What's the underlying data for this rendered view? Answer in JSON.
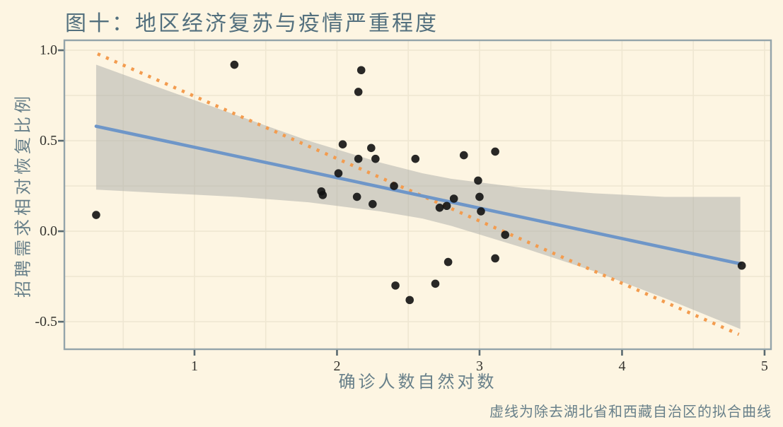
{
  "chart_data": {
    "type": "scatter",
    "title": "图十：地区经济复苏与疫情严重程度",
    "xlabel": "确诊人数自然对数",
    "ylabel": "招聘需求相对恢复比例",
    "annotation": "虚线为除去湖北省和西藏自治区的拟合曲线",
    "xlim": [
      0.087,
      5.045
    ],
    "ylim": [
      -0.652,
      1.055
    ],
    "x_ticks": [
      1,
      2,
      3,
      4,
      5
    ],
    "x_tick_labels": [
      "1",
      "2",
      "3",
      "4",
      "5"
    ],
    "y_ticks": [
      1.0,
      0.5,
      0.0,
      -0.5
    ],
    "y_tick_labels": [
      "1.0",
      "0.5",
      "0.0",
      "-0.5"
    ],
    "x_gridlines": [
      0.5,
      1.0,
      1.5,
      2.0,
      2.5,
      3.0,
      3.5,
      4.0,
      4.5,
      5.0
    ],
    "y_gridlines": [
      -0.5,
      -0.25,
      0.0,
      0.25,
      0.5,
      0.75,
      1.0
    ],
    "grid": "on",
    "legend": "none",
    "points": [
      [
        0.31,
        0.09
      ],
      [
        1.28,
        0.92
      ],
      [
        2.17,
        0.89
      ],
      [
        2.15,
        0.77
      ],
      [
        2.04,
        0.48
      ],
      [
        2.24,
        0.46
      ],
      [
        2.15,
        0.4
      ],
      [
        2.27,
        0.4
      ],
      [
        2.55,
        0.4
      ],
      [
        2.89,
        0.42
      ],
      [
        3.11,
        0.44
      ],
      [
        2.01,
        0.32
      ],
      [
        2.99,
        0.28
      ],
      [
        1.89,
        0.22
      ],
      [
        1.9,
        0.2
      ],
      [
        2.4,
        0.25
      ],
      [
        2.14,
        0.19
      ],
      [
        2.25,
        0.15
      ],
      [
        2.82,
        0.18
      ],
      [
        2.72,
        0.13
      ],
      [
        2.77,
        0.14
      ],
      [
        3.0,
        0.19
      ],
      [
        3.01,
        0.11
      ],
      [
        3.18,
        -0.02
      ],
      [
        2.78,
        -0.17
      ],
      [
        3.11,
        -0.15
      ],
      [
        2.41,
        -0.3
      ],
      [
        2.69,
        -0.29
      ],
      [
        2.51,
        -0.38
      ],
      [
        4.84,
        -0.19
      ]
    ],
    "solid_fit_line": {
      "x1": 0.31,
      "y1": 0.58,
      "x2": 4.83,
      "y2": -0.18
    },
    "dashed_fit_line": {
      "x1": 0.32,
      "y1": 0.98,
      "x2": 4.82,
      "y2": -0.57
    },
    "confidence_band": {
      "x": [
        0.31,
        0.8,
        1.3,
        1.8,
        2.3,
        2.6,
        2.8,
        3.3,
        3.8,
        4.3,
        4.83
      ],
      "upper": [
        0.92,
        0.78,
        0.64,
        0.5,
        0.38,
        0.32,
        0.29,
        0.24,
        0.21,
        0.19,
        0.19
      ],
      "lower": [
        0.23,
        0.21,
        0.19,
        0.16,
        0.11,
        0.07,
        0.03,
        -0.09,
        -0.22,
        -0.37,
        -0.54
      ]
    },
    "colors": {
      "background": "#FDF5E2",
      "panel_border": "#94A4AA",
      "gridline": "#EFE7D2",
      "tick": "#5A6A70",
      "tick_label": "#35342F",
      "title": "#53707E",
      "axis_title": "#68808A",
      "annotation_text": "#68808A",
      "point": "#121212",
      "solid_line": "#6E96C8",
      "dashed_line": "#F39C4F",
      "band": "rgba(170,171,168,0.5)"
    }
  }
}
